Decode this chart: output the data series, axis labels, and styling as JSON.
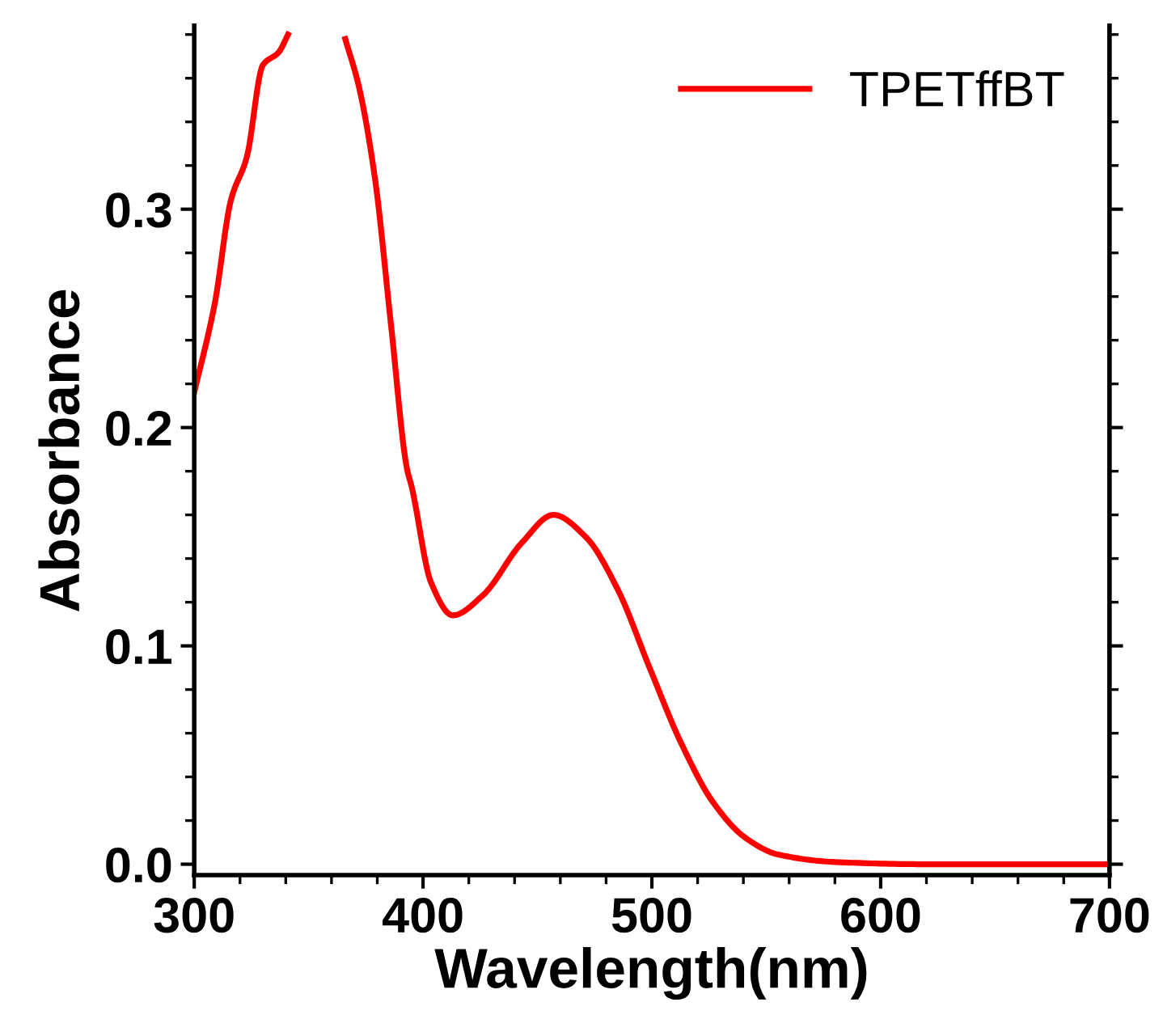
{
  "chart_data": {
    "type": "line",
    "xlabel": "Wavelength(nm)",
    "ylabel": "Absorbance",
    "xlim": [
      300,
      700
    ],
    "ylim": [
      -0.005,
      0.384
    ],
    "xticks": [
      300,
      400,
      500,
      600,
      700
    ],
    "yticks": [
      {
        "value": 0,
        "label": "0.0"
      },
      {
        "value": 0.1,
        "label": "0.1"
      },
      {
        "value": 0.2,
        "label": "0.2"
      },
      {
        "value": 0.3,
        "label": "0.3"
      }
    ],
    "legend": "top right",
    "grid": false,
    "marker": "none",
    "line_style": "solid",
    "series": [
      {
        "name": "TPETffBT",
        "color": "#ff0000",
        "x": [
          300,
          309,
          316,
          323,
          330,
          337,
          341,
          352,
          366,
          372,
          379,
          386,
          393,
          395,
          403.5,
          413,
          426,
          443,
          457,
          471,
          485,
          499,
          513,
          527,
          541,
          555,
          580,
          620,
          700
        ],
        "values": [
          0.216,
          0.257,
          0.304,
          0.324,
          0.366,
          0.372,
          0.38,
          null,
          0.378,
          0.356,
          0.314,
          0.247,
          0.181,
          0.173,
          0.129,
          0.114,
          0.123,
          0.147,
          0.16,
          0.15,
          0.126,
          0.09,
          0.055,
          0.028,
          0.012,
          0.0045,
          0.001,
          0.0,
          0.0
        ]
      }
    ]
  }
}
